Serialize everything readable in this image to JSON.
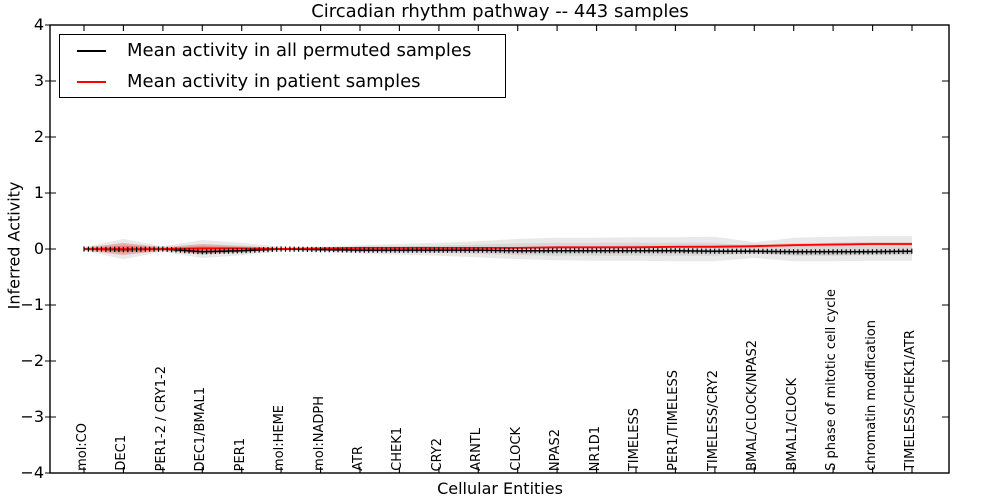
{
  "figure": {
    "title": "Circadian rhythm pathway -- 443 samples",
    "xlabel": "Cellular Entities",
    "ylabel": "Inferred Activity"
  },
  "legend": {
    "items": [
      {
        "label": "Mean activity in all permuted samples",
        "color": "#000000"
      },
      {
        "label": "Mean activity in patient samples",
        "color": "#ff0000"
      }
    ]
  },
  "chart_data": {
    "type": "line",
    "title": "Circadian rhythm pathway -- 443 samples",
    "xlabel": "Cellular Entities",
    "ylabel": "Inferred Activity",
    "ylim": [
      -4,
      4
    ],
    "grid": false,
    "legend_position": "upper left",
    "yticks": [
      4,
      3,
      2,
      1,
      0,
      -1,
      -2,
      -3,
      -4
    ],
    "ytick_labels": [
      "4",
      "3",
      "2",
      "1",
      "0",
      "−1",
      "−2",
      "−3",
      "−4"
    ],
    "categories": [
      "mol:CO",
      "DEC1",
      "PER1-2 / CRY1-2",
      "DEC1/BMAL1",
      "PER1",
      "mol:HEME",
      "mol:NADPH",
      "ATR",
      "CHEK1",
      "CRY2",
      "ARNTL",
      "CLOCK",
      "NPAS2",
      "NR1D1",
      "TIMELESS",
      "PER1/TIMELESS",
      "TIMELESS/CRY2",
      "BMAL/CLOCK/NPAS2",
      "BMAL1/CLOCK",
      "S phase of mitotic cell cycle",
      "chromatin modification",
      "TIMELESS/CHEK1/ATR"
    ],
    "series": [
      {
        "name": "Mean activity in all permuted samples",
        "color": "#000000",
        "marker": "vertical-dash",
        "values": [
          0.0,
          -0.01,
          0.0,
          -0.05,
          -0.03,
          0.0,
          -0.01,
          -0.02,
          -0.02,
          -0.02,
          -0.02,
          -0.03,
          -0.03,
          -0.03,
          -0.03,
          -0.03,
          -0.04,
          -0.04,
          -0.05,
          -0.05,
          -0.05,
          -0.04
        ]
      },
      {
        "name": "Mean activity in patient samples",
        "color": "#ff0000",
        "marker": "none",
        "values": [
          0.0,
          0.0,
          0.0,
          0.01,
          0.01,
          0.0,
          0.01,
          0.02,
          0.02,
          0.02,
          0.02,
          0.02,
          0.03,
          0.03,
          0.03,
          0.04,
          0.04,
          0.05,
          0.07,
          0.08,
          0.09,
          0.09
        ]
      }
    ],
    "bands": [
      {
        "name": "permuted-envelope-outer",
        "color": "rgba(0,0,0,0.085)",
        "upper": [
          0.03,
          0.18,
          0.05,
          0.16,
          0.11,
          0.04,
          0.04,
          0.07,
          0.09,
          0.11,
          0.14,
          0.18,
          0.2,
          0.2,
          0.21,
          0.21,
          0.22,
          0.12,
          0.2,
          0.22,
          0.23,
          0.23
        ],
        "lower": [
          -0.03,
          -0.18,
          -0.05,
          -0.16,
          -0.11,
          -0.04,
          -0.05,
          -0.08,
          -0.1,
          -0.12,
          -0.15,
          -0.18,
          -0.2,
          -0.21,
          -0.21,
          -0.22,
          -0.22,
          -0.16,
          -0.22,
          -0.22,
          -0.21,
          -0.21
        ]
      },
      {
        "name": "permuted-envelope-inner",
        "color": "rgba(0,0,0,0.07)",
        "upper": [
          0.02,
          0.1,
          0.03,
          0.09,
          0.06,
          0.02,
          0.02,
          0.04,
          0.05,
          0.06,
          0.08,
          0.1,
          0.11,
          0.11,
          0.11,
          0.11,
          0.11,
          0.05,
          0.06,
          0.06,
          0.06,
          0.06
        ],
        "lower": [
          -0.02,
          -0.1,
          -0.03,
          -0.1,
          -0.07,
          -0.02,
          -0.03,
          -0.05,
          -0.06,
          -0.07,
          -0.09,
          -0.11,
          -0.12,
          -0.12,
          -0.12,
          -0.12,
          -0.12,
          -0.08,
          -0.12,
          -0.12,
          -0.11,
          -0.11
        ]
      },
      {
        "name": "permuted-envelope-core",
        "color": "rgba(0,0,0,0.10)",
        "upper": [
          0.01,
          0.01,
          0.01,
          -0.02,
          -0.01,
          0.01,
          0.0,
          0.0,
          0.0,
          0.0,
          0.0,
          -0.01,
          -0.01,
          -0.01,
          -0.01,
          -0.01,
          -0.02,
          -0.02,
          -0.02,
          -0.02,
          -0.02,
          -0.02
        ],
        "lower": [
          -0.01,
          -0.03,
          -0.01,
          -0.09,
          -0.06,
          -0.01,
          -0.03,
          -0.05,
          -0.06,
          -0.06,
          -0.06,
          -0.07,
          -0.07,
          -0.07,
          -0.07,
          -0.07,
          -0.08,
          -0.08,
          -0.1,
          -0.1,
          -0.09,
          -0.09
        ]
      },
      {
        "name": "patient-envelope-outer",
        "color": "rgba(255,0,0,0.18)",
        "upper": [
          0.02,
          0.11,
          0.03,
          0.09,
          0.05,
          0.02,
          0.02,
          0.04,
          0.04,
          0.04,
          0.04,
          0.04,
          0.05,
          0.05,
          0.06,
          0.06,
          0.07,
          0.08,
          0.1,
          0.11,
          0.12,
          0.12
        ],
        "lower": [
          -0.02,
          -0.11,
          -0.03,
          -0.09,
          -0.05,
          -0.02,
          -0.01,
          0.0,
          0.0,
          0.0,
          0.0,
          0.0,
          0.01,
          0.01,
          0.01,
          0.02,
          0.02,
          0.02,
          0.04,
          0.05,
          0.06,
          0.06
        ]
      },
      {
        "name": "patient-envelope-inner",
        "color": "rgba(255,0,0,0.30)",
        "upper": [
          0.01,
          0.06,
          0.02,
          0.05,
          0.03,
          0.01,
          0.015,
          0.03,
          0.03,
          0.03,
          0.03,
          0.03,
          0.04,
          0.04,
          0.045,
          0.05,
          0.055,
          0.065,
          0.085,
          0.095,
          0.105,
          0.105
        ],
        "lower": [
          -0.01,
          -0.06,
          -0.02,
          -0.05,
          -0.03,
          -0.01,
          0.0,
          0.01,
          0.01,
          0.01,
          0.01,
          0.01,
          0.015,
          0.02,
          0.02,
          0.025,
          0.03,
          0.035,
          0.055,
          0.065,
          0.075,
          0.075
        ]
      }
    ]
  }
}
